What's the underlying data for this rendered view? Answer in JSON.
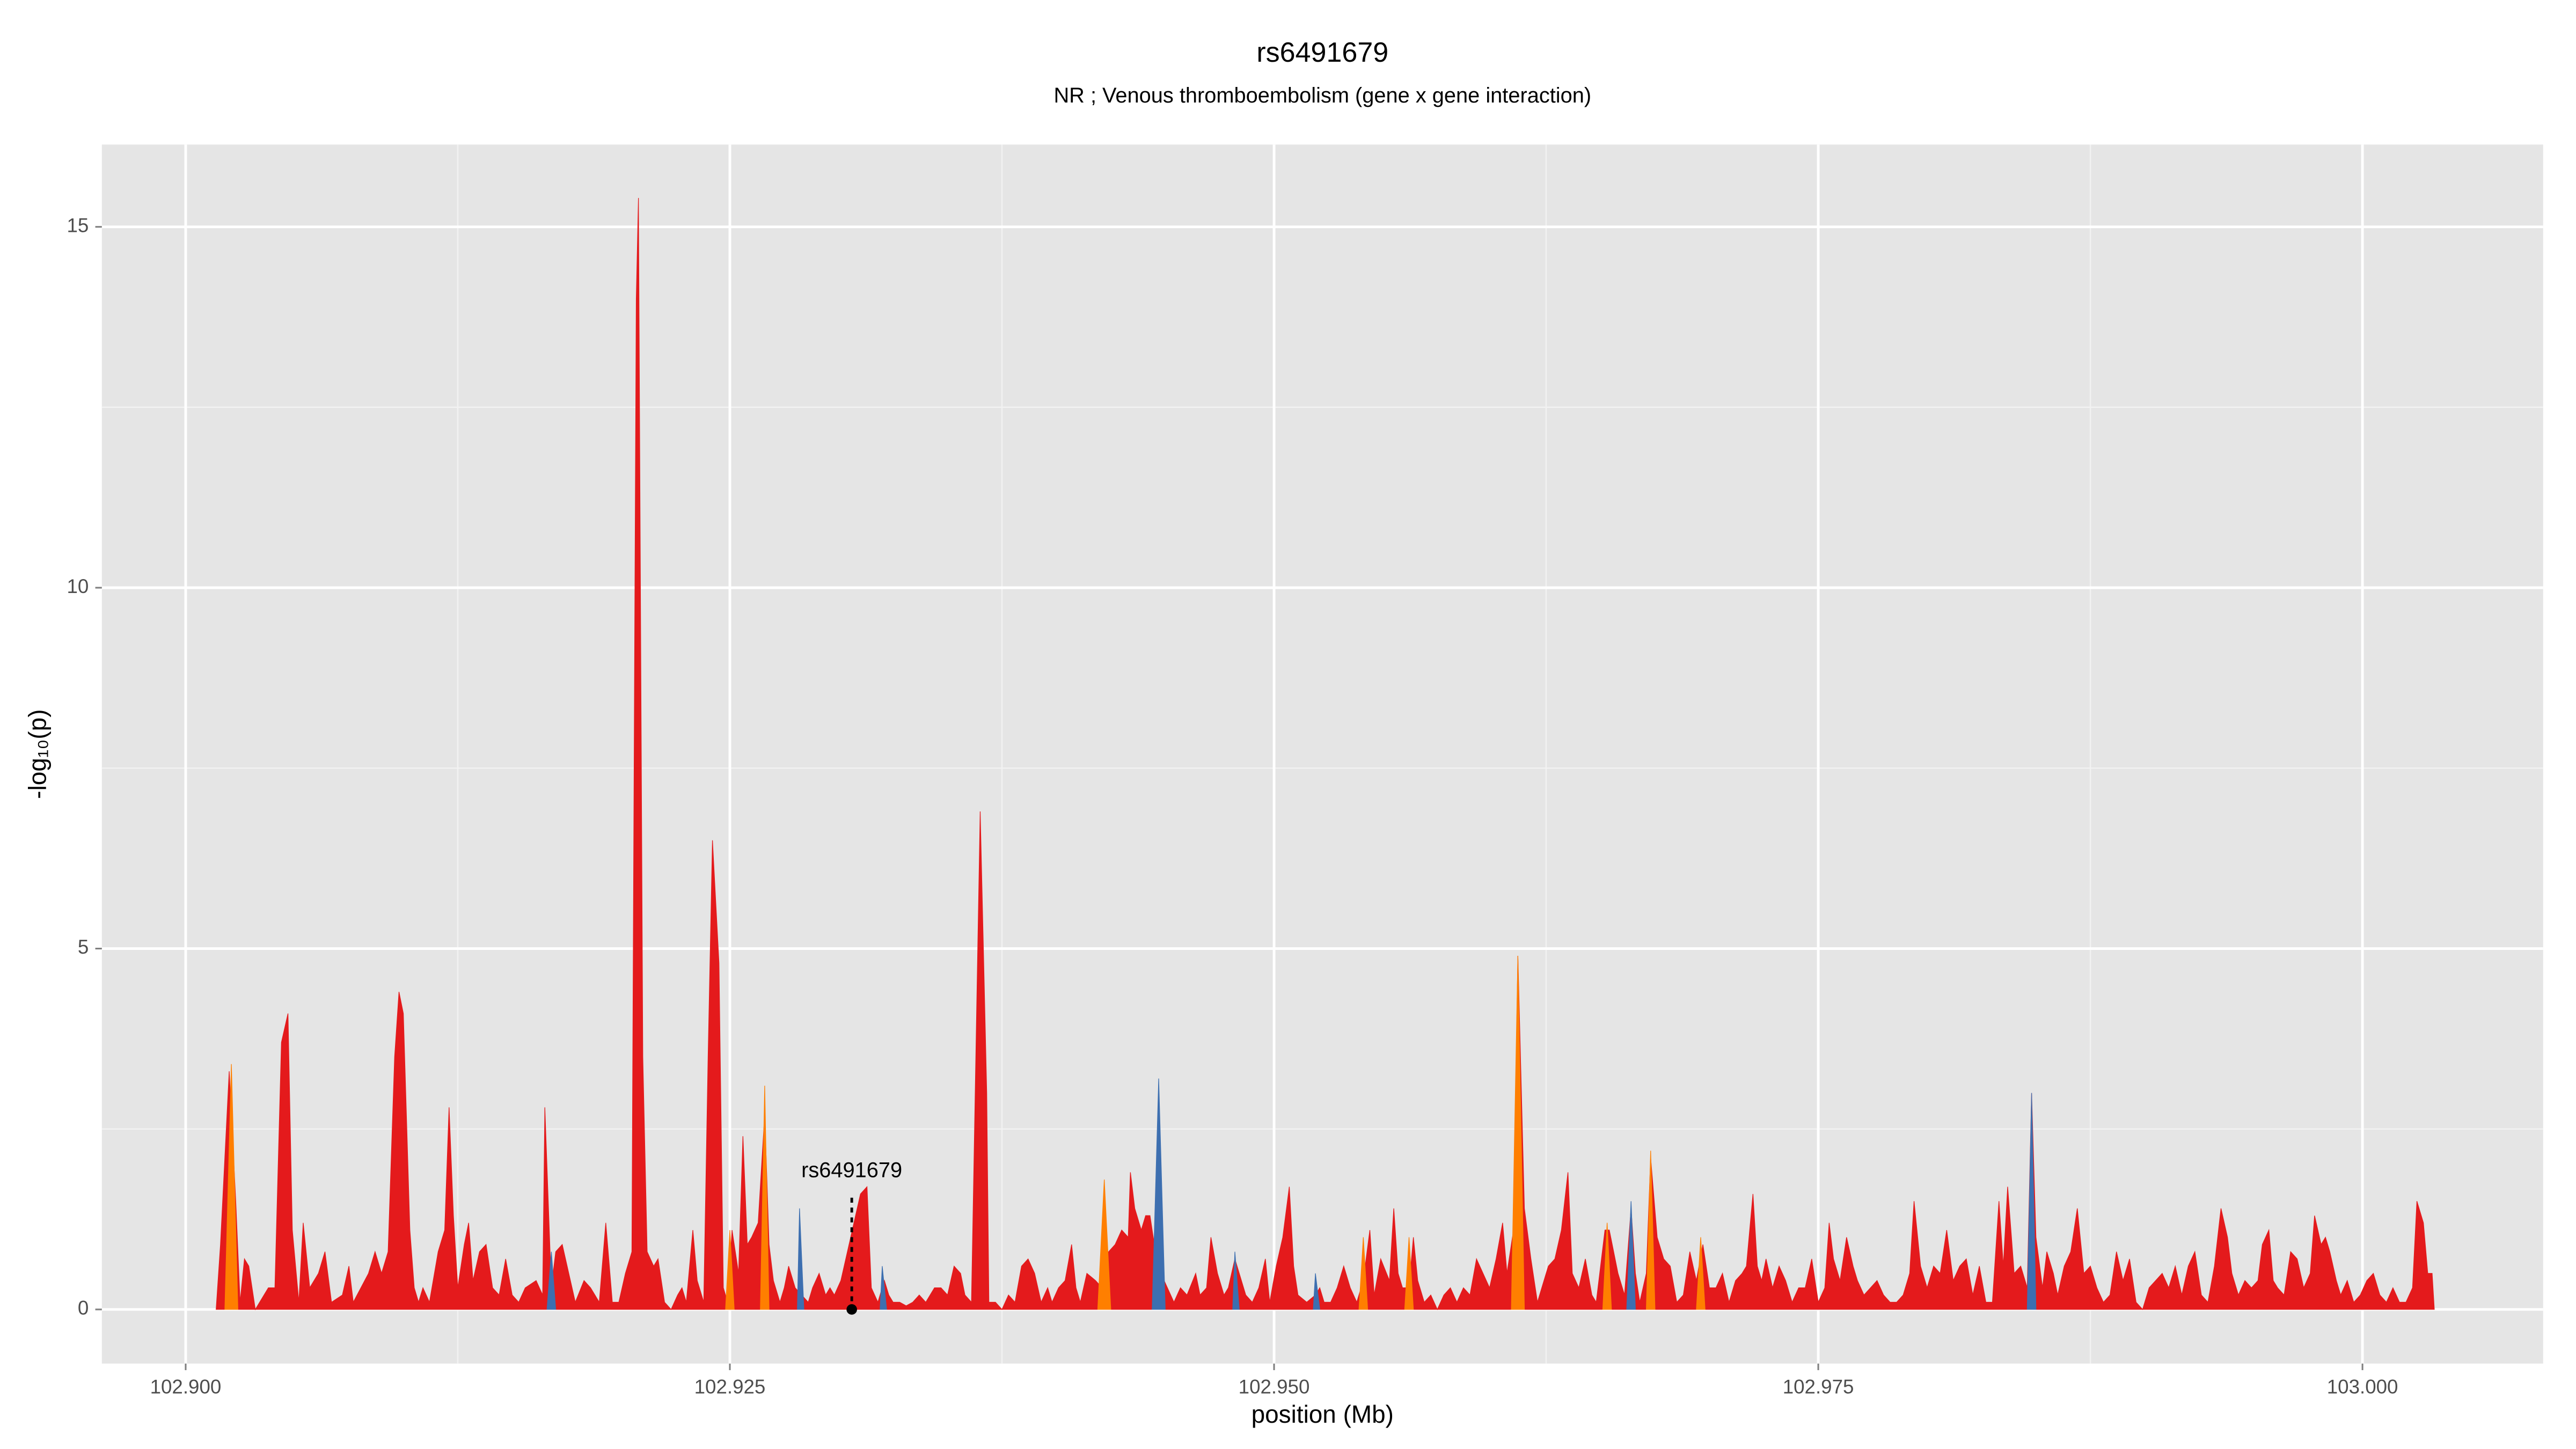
{
  "chart_data": {
    "type": "area",
    "title": "rs6491679",
    "subtitle": "NR ; Venous thromboembolism (gene x gene interaction)",
    "x_label": "position (Mb)",
    "y_label": "-log₁₀(p)",
    "xlim": [
      102.89615,
      103.0083
    ],
    "ylim": [
      -0.75,
      16.14
    ],
    "xticks": [
      {
        "value": 102.9,
        "label": "102.900"
      },
      {
        "value": 102.925,
        "label": "102.925"
      },
      {
        "value": 102.95,
        "label": "102.950"
      },
      {
        "value": 102.975,
        "label": "102.975"
      },
      {
        "value": 103.0,
        "label": "103.000"
      }
    ],
    "yticks": [
      0,
      5,
      10,
      15
    ],
    "xminor": [
      102.9125,
      102.9375,
      102.9625,
      102.9875
    ],
    "yminor": [
      2.5,
      7.5,
      12.5
    ],
    "grid": true,
    "panel_color": "#e5e5e5",
    "series": [
      {
        "color": "#e41a1c",
        "x": [
          102.9014,
          102.9016,
          102.902,
          102.9023,
          102.9025,
          102.9027,
          102.9029,
          102.9032,
          102.9038,
          102.9041,
          102.9044,
          102.9047,
          102.9049,
          102.9052,
          102.9054,
          102.9057,
          102.9061,
          102.9064,
          102.9067,
          102.9072,
          102.9075,
          102.9077,
          102.9084,
          102.9087,
          102.909,
          102.9093,
          102.9096,
          102.9098,
          102.91,
          102.9103,
          102.9105,
          102.9107,
          102.9109,
          102.9112,
          102.9116,
          102.9119,
          102.9121,
          102.9123,
          102.9125,
          102.9128,
          102.913,
          102.9132,
          102.9135,
          102.9138,
          102.9141,
          102.9144,
          102.9147,
          102.915,
          102.9153,
          102.9156,
          102.9161,
          102.9164,
          102.9165,
          102.9168,
          102.917,
          102.9173,
          102.9176,
          102.9179,
          102.9183,
          102.9186,
          102.919,
          102.9193,
          102.9196,
          102.9199,
          102.9202,
          102.9205,
          102.9207,
          102.9208,
          102.921,
          102.9212,
          102.9215,
          102.9217,
          102.922,
          102.9223,
          102.9226,
          102.9228,
          102.923,
          102.9233,
          102.9235,
          102.9238,
          102.924,
          102.9242,
          102.9245,
          102.9247,
          102.9249,
          102.9251,
          102.9254,
          102.9256,
          102.9258,
          102.926,
          102.9263,
          102.9266,
          102.9268,
          102.927,
          102.9273,
          102.9275,
          102.9277,
          102.928,
          102.9283,
          102.9286,
          102.9288,
          102.9291,
          102.9294,
          102.9296,
          102.9298,
          102.9301,
          102.9304,
          102.9307,
          102.931,
          102.9313,
          102.9315,
          102.9318,
          102.9321,
          102.9323,
          102.9325,
          102.9328,
          102.9331,
          102.9334,
          102.9337,
          102.934,
          102.9344,
          102.9347,
          102.935,
          102.9353,
          102.9356,
          102.9358,
          102.9361,
          102.9363,
          102.9365,
          102.9368,
          102.9369,
          102.9372,
          102.9375,
          102.9378,
          102.9381,
          102.9384,
          102.9387,
          102.939,
          102.9393,
          102.9396,
          102.9398,
          102.9401,
          102.9404,
          102.9407,
          102.9409,
          102.9411,
          102.9414,
          102.9418,
          102.9421,
          102.9424,
          102.9427,
          102.943,
          102.9433,
          102.9434,
          102.9436,
          102.9439,
          102.9441,
          102.9443,
          102.9445,
          102.9448,
          102.9451,
          102.9454,
          102.9457,
          102.946,
          102.9464,
          102.9466,
          102.9469,
          102.9471,
          102.9474,
          102.9477,
          102.9479,
          102.9482,
          102.9485,
          102.9487,
          102.949,
          102.9493,
          102.9496,
          102.9498,
          102.9501,
          102.9504,
          102.9507,
          102.9509,
          102.9511,
          102.9515,
          102.9519,
          102.9521,
          102.9523,
          102.9526,
          102.9529,
          102.9532,
          102.9535,
          102.9538,
          102.9541,
          102.9544,
          102.9546,
          102.9549,
          102.9553,
          102.9555,
          102.9557,
          102.9559,
          102.9562,
          102.9564,
          102.9566,
          102.9569,
          102.9572,
          102.9575,
          102.9578,
          102.9581,
          102.9584,
          102.9587,
          102.959,
          102.9593,
          102.9596,
          102.9599,
          102.9602,
          102.9605,
          102.9607,
          102.961,
          102.9612,
          102.9615,
          102.9618,
          102.9621,
          102.9623,
          102.9626,
          102.9629,
          102.9632,
          102.9635,
          102.9637,
          102.964,
          102.9643,
          102.9646,
          102.9648,
          102.9652,
          102.9654,
          102.9656,
          102.9658,
          102.9661,
          102.9664,
          102.9666,
          102.9668,
          102.9671,
          102.9673,
          102.9676,
          102.9679,
          102.9682,
          102.9685,
          102.9688,
          102.9691,
          102.9694,
          102.9697,
          102.97,
          102.9703,
          102.9706,
          102.9709,
          102.9712,
          102.9715,
          102.9717,
          102.972,
          102.9722,
          102.9724,
          102.9726,
          102.9729,
          102.9732,
          102.9735,
          102.9738,
          102.9741,
          102.9744,
          102.9747,
          102.975,
          102.9753,
          102.9755,
          102.9757,
          102.976,
          102.9763,
          102.9766,
          102.9768,
          102.9771,
          102.9774,
          102.9777,
          102.978,
          102.9783,
          102.9786,
          102.9789,
          102.9792,
          102.9794,
          102.9797,
          102.98,
          102.9803,
          102.9806,
          102.9809,
          102.9812,
          102.9815,
          102.9818,
          102.9821,
          102.9824,
          102.9827,
          102.983,
          102.9833,
          102.9835,
          102.9837,
          102.984,
          102.9843,
          102.9846,
          102.9848,
          102.985,
          102.9853,
          102.9855,
          102.9858,
          102.986,
          102.9863,
          102.9866,
          102.9869,
          102.9872,
          102.9875,
          102.9878,
          102.9881,
          102.9884,
          102.9887,
          102.989,
          102.9893,
          102.9896,
          102.9899,
          102.9902,
          102.9905,
          102.9908,
          102.9911,
          102.9914,
          102.9917,
          102.992,
          102.9923,
          102.9926,
          102.9929,
          102.9932,
          102.9935,
          102.9938,
          102.994,
          102.9943,
          102.9946,
          102.9949,
          102.9952,
          102.9954,
          102.9957,
          102.9959,
          102.9961,
          102.9964,
          102.9967,
          102.997,
          102.9973,
          102.9976,
          102.9978,
          102.9981,
          102.9983,
          102.9985,
          102.9988,
          102.999,
          102.9993,
          102.9996,
          102.9999,
          103.0002,
          103.0005,
          103.0008,
          103.0011,
          103.0014,
          103.0017,
          103.002,
          103.0023,
          103.0025,
          103.0028,
          103.003,
          103.0032,
          103.0033
        ],
        "values": [
          0,
          0.9,
          3.3,
          1.5,
          0.1,
          0.7,
          0.6,
          0,
          0.3,
          0.3,
          3.7,
          4.1,
          1.1,
          0.1,
          1.2,
          0.3,
          0.5,
          0.8,
          0.1,
          0.2,
          0.6,
          0.1,
          0.5,
          0.8,
          0.5,
          0.8,
          3.5,
          4.4,
          4.1,
          1.1,
          0.3,
          0.1,
          0.3,
          0.1,
          0.8,
          1.1,
          2.8,
          1.3,
          0.3,
          0.9,
          1.2,
          0.4,
          0.8,
          0.9,
          0.3,
          0.2,
          0.7,
          0.2,
          0.1,
          0.3,
          0.4,
          0.2,
          2.8,
          0.3,
          0.8,
          0.9,
          0.5,
          0.1,
          0.4,
          0.3,
          0.1,
          1.2,
          0.1,
          0.1,
          0.5,
          0.8,
          14,
          15.4,
          3.5,
          0.8,
          0.6,
          0.7,
          0.1,
          0,
          0.2,
          0.3,
          0.1,
          1.1,
          0.4,
          0.1,
          3.5,
          6.5,
          4.8,
          0.3,
          0.1,
          1.1,
          0.5,
          2.4,
          0.9,
          1.0,
          1.2,
          2.7,
          0.9,
          0.4,
          0.1,
          0.3,
          0.6,
          0.3,
          0.2,
          0.1,
          0.3,
          0.5,
          0.2,
          0.3,
          0.2,
          0.4,
          0.8,
          1.2,
          1.6,
          1.7,
          0.3,
          0.1,
          0.4,
          0.2,
          0.1,
          0.1,
          0.05,
          0.1,
          0.2,
          0.1,
          0.3,
          0.3,
          0.2,
          0.6,
          0.5,
          0.2,
          0.1,
          3.5,
          6.9,
          3.0,
          0.1,
          0.1,
          0,
          0.2,
          0.1,
          0.6,
          0.7,
          0.5,
          0.1,
          0.3,
          0.1,
          0.3,
          0.4,
          0.9,
          0.3,
          0.1,
          0.5,
          0.4,
          0.3,
          0.8,
          0.9,
          1.1,
          1.0,
          1.9,
          1.4,
          1.1,
          1.3,
          1.3,
          0.9,
          0.5,
          0.3,
          0.1,
          0.3,
          0.2,
          0.5,
          0.2,
          0.3,
          1.0,
          0.5,
          0.2,
          0.3,
          0.7,
          0.4,
          0.2,
          0.1,
          0.3,
          0.7,
          0.1,
          0.6,
          1.0,
          1.7,
          0.6,
          0.2,
          0.1,
          0.2,
          0.3,
          0.1,
          0.1,
          0.3,
          0.6,
          0.3,
          0.1,
          0.4,
          1.1,
          0.2,
          0.7,
          0.4,
          1.4,
          0.5,
          0.3,
          0.3,
          1.0,
          0.4,
          0.1,
          0.2,
          0,
          0.2,
          0.3,
          0.1,
          0.3,
          0.2,
          0.7,
          0.5,
          0.3,
          0.7,
          1.2,
          0.5,
          1.1,
          4.9,
          1.4,
          0.7,
          0.1,
          0.3,
          0.6,
          0.7,
          1.1,
          1.9,
          0.5,
          0.3,
          0.7,
          0.2,
          0.1,
          1.1,
          1.1,
          0.8,
          0.5,
          0.2,
          1.4,
          0.5,
          0.1,
          0.5,
          2.1,
          1.0,
          0.7,
          0.6,
          0.1,
          0.2,
          0.8,
          0.4,
          0.9,
          0.3,
          0.3,
          0.5,
          0.1,
          0.4,
          0.5,
          0.6,
          1.6,
          0.6,
          0.4,
          0.7,
          0.3,
          0.6,
          0.4,
          0.1,
          0.3,
          0.3,
          0.7,
          0.1,
          0.3,
          1.2,
          0.7,
          0.4,
          1.0,
          0.6,
          0.4,
          0.2,
          0.3,
          0.4,
          0.2,
          0.1,
          0.1,
          0.2,
          0.5,
          1.5,
          0.6,
          0.3,
          0.6,
          0.5,
          1.1,
          0.4,
          0.6,
          0.7,
          0.2,
          0.6,
          0.1,
          0.1,
          1.5,
          0.6,
          1.7,
          0.5,
          0.6,
          0.3,
          3.0,
          1.0,
          0.3,
          0.8,
          0.5,
          0.2,
          0.6,
          0.8,
          1.4,
          0.5,
          0.6,
          0.3,
          0.1,
          0.2,
          0.8,
          0.4,
          0.7,
          0.1,
          0,
          0.3,
          0.4,
          0.5,
          0.3,
          0.6,
          0.2,
          0.6,
          0.8,
          0.2,
          0.1,
          0.6,
          1.4,
          1.0,
          0.5,
          0.2,
          0.4,
          0.3,
          0.4,
          0.9,
          1.1,
          0.4,
          0.3,
          0.2,
          0.8,
          0.7,
          0.3,
          0.5,
          1.3,
          0.9,
          1.0,
          0.8,
          0.4,
          0.2,
          0.4,
          0.1,
          0.2,
          0.4,
          0.5,
          0.2,
          0.1,
          0.3,
          0.1,
          0.1,
          0.3,
          1.5,
          1.2,
          0.5,
          0.5,
          0
        ]
      },
      {
        "color": "#ff7f00",
        "x": [
          102.9018,
          102.9021,
          102.9024,
          102.9024,
          102.9248,
          102.925,
          102.9252,
          102.9252,
          102.9264,
          102.9266,
          102.9268,
          102.9268,
          102.9419,
          102.9422,
          102.9425,
          102.9425,
          102.9539,
          102.9541,
          102.9543,
          102.9543,
          102.956,
          102.9562,
          102.9564,
          102.9564,
          102.9609,
          102.9612,
          102.9615,
          102.9615,
          102.9651,
          102.9653,
          102.9655,
          102.9655,
          102.9671,
          102.9673,
          102.9675,
          102.9675,
          102.9694,
          102.9696,
          102.9698
        ],
        "values": [
          0,
          3.4,
          0,
          null,
          0,
          1.1,
          0,
          null,
          0,
          3.1,
          0,
          null,
          0,
          1.8,
          0,
          null,
          0,
          1.0,
          0,
          null,
          0,
          1.0,
          0,
          null,
          0,
          4.9,
          0,
          null,
          0,
          1.2,
          0,
          null,
          0,
          2.2,
          0,
          null,
          0,
          1.0,
          0
        ]
      },
      {
        "color": "#3d6fb0",
        "x": [
          102.9166,
          102.9168,
          102.917,
          102.917,
          102.9281,
          102.9282,
          102.9284,
          102.9284,
          102.9319,
          102.932,
          102.9322,
          102.9322,
          102.9444,
          102.9447,
          102.945,
          102.945,
          102.9481,
          102.9482,
          102.9484,
          102.9484,
          102.9518,
          102.9519,
          102.9521,
          102.9521,
          102.9662,
          102.9664,
          102.9666,
          102.9666,
          102.9846,
          102.9848,
          102.985
        ],
        "values": [
          0,
          0.8,
          0,
          null,
          0,
          1.4,
          0,
          null,
          0,
          0.6,
          0,
          null,
          0,
          3.2,
          0,
          null,
          0,
          0.8,
          0,
          null,
          0,
          0.5,
          0,
          null,
          0,
          1.5,
          0,
          null,
          0,
          3.0,
          0
        ]
      }
    ],
    "annotation": {
      "text": "rs6491679",
      "x": 102.9306,
      "y": 0
    }
  }
}
